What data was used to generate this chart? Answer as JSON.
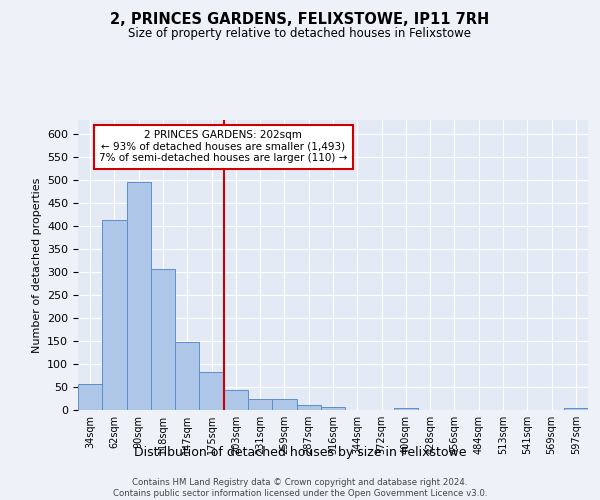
{
  "title": "2, PRINCES GARDENS, FELIXSTOWE, IP11 7RH",
  "subtitle": "Size of property relative to detached houses in Felixstowe",
  "xlabel": "Distribution of detached houses by size in Felixstowe",
  "ylabel": "Number of detached properties",
  "categories": [
    "34sqm",
    "62sqm",
    "90sqm",
    "118sqm",
    "147sqm",
    "175sqm",
    "203sqm",
    "231sqm",
    "259sqm",
    "287sqm",
    "316sqm",
    "344sqm",
    "372sqm",
    "400sqm",
    "428sqm",
    "456sqm",
    "484sqm",
    "513sqm",
    "541sqm",
    "569sqm",
    "597sqm"
  ],
  "values": [
    57,
    413,
    495,
    307,
    148,
    82,
    44,
    24,
    24,
    10,
    7,
    0,
    0,
    5,
    0,
    0,
    0,
    0,
    0,
    0,
    5
  ],
  "bar_color": "#aec6e8",
  "bar_edge_color": "#5b8fc9",
  "vline_index": 6,
  "vline_color": "#cc0000",
  "annotation_text": "2 PRINCES GARDENS: 202sqm\n← 93% of detached houses are smaller (1,493)\n7% of semi-detached houses are larger (110) →",
  "annotation_box_color": "#ffffff",
  "annotation_box_edge_color": "#cc0000",
  "ylim": [
    0,
    630
  ],
  "yticks": [
    0,
    50,
    100,
    150,
    200,
    250,
    300,
    350,
    400,
    450,
    500,
    550,
    600
  ],
  "footer_text": "Contains HM Land Registry data © Crown copyright and database right 2024.\nContains public sector information licensed under the Open Government Licence v3.0.",
  "background_color": "#eef2f8",
  "plot_bg_color": "#e4eaf5"
}
